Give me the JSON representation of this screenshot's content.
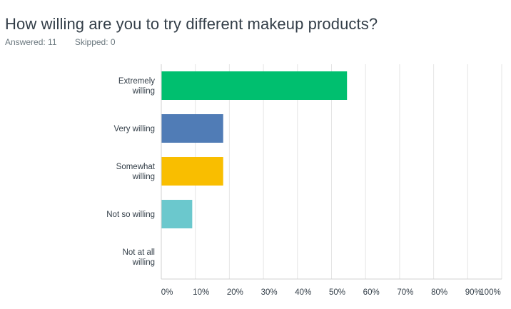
{
  "question": {
    "title": "How willing are you to try different makeup products?",
    "answered": "Answered: 11",
    "skipped": "Skipped: 0"
  },
  "chart_data": {
    "type": "bar",
    "orientation": "horizontal",
    "categories": [
      [
        "Extremely",
        "willing"
      ],
      [
        "Very willing"
      ],
      [
        "Somewhat",
        "willing"
      ],
      [
        "Not so willing"
      ],
      [
        "Not at all",
        "willing"
      ]
    ],
    "values": [
      54.55,
      18.18,
      18.18,
      9.09,
      0
    ],
    "colors": [
      "#00bf6f",
      "#507cb6",
      "#f9be00",
      "#6bc8cd",
      "#ff8b4f"
    ],
    "xlim": [
      0,
      100
    ],
    "xticks": [
      "0%",
      "10%",
      "20%",
      "30%",
      "40%",
      "50%",
      "60%",
      "70%",
      "80%",
      "90%",
      "100%"
    ],
    "grid": true,
    "grid_color": "#e5e5e5",
    "axis_color": "#d0d0d0"
  }
}
